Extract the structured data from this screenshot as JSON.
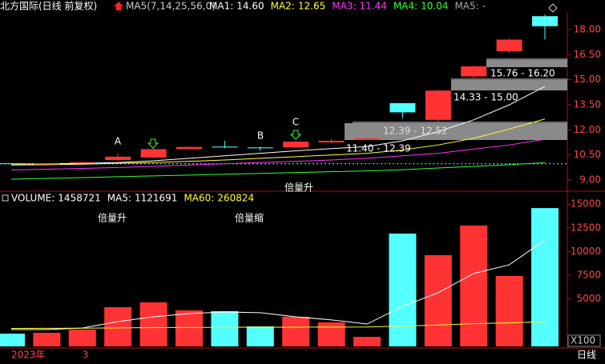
{
  "header": {
    "title": "北方国际(日线 前复权)",
    "indicator": "MA5(7,14,25,56,0)",
    "period": "日线"
  },
  "chart_data": [
    {
      "type": "candlestick",
      "categories": [
        "2023年",
        null,
        "3",
        null,
        null,
        null,
        null,
        null,
        null,
        null,
        null,
        null,
        null,
        null,
        null,
        null
      ],
      "open": [
        10.0,
        9.97,
        10.02,
        10.2,
        10.35,
        10.85,
        11.0,
        10.95,
        10.95,
        11.25,
        11.4,
        13.6,
        12.6,
        15.2,
        16.7,
        18.8
      ],
      "close": [
        9.98,
        9.99,
        10.07,
        10.4,
        10.85,
        10.98,
        10.95,
        10.9,
        11.3,
        11.35,
        11.5,
        13.05,
        14.35,
        15.8,
        17.4,
        18.2
      ],
      "high": [
        10.02,
        10.0,
        10.1,
        10.6,
        10.9,
        11.0,
        11.35,
        11.0,
        11.35,
        11.45,
        11.55,
        13.6,
        14.4,
        15.85,
        17.45,
        18.9
      ],
      "low": [
        9.96,
        9.95,
        10.0,
        10.15,
        10.3,
        10.8,
        10.9,
        10.75,
        10.9,
        11.2,
        11.4,
        12.7,
        12.5,
        15.0,
        16.6,
        17.4
      ],
      "up_color": "#ff3333",
      "down_color": "#54ffff",
      "series": [
        {
          "name": "MA1:",
          "color": "#ffffff",
          "last_label": "14.60",
          "values": [
            9.95,
            9.97,
            10.0,
            10.05,
            10.15,
            10.3,
            10.45,
            10.6,
            10.75,
            10.88,
            11.0,
            11.35,
            11.9,
            12.6,
            13.5,
            14.6
          ]
        },
        {
          "name": "MA2:",
          "color": "#ffff33",
          "last_label": "12.65",
          "values": [
            9.9,
            9.92,
            9.95,
            10.0,
            10.05,
            10.12,
            10.2,
            10.3,
            10.4,
            10.5,
            10.6,
            10.8,
            11.1,
            11.5,
            12.05,
            12.65
          ]
        },
        {
          "name": "MA3:",
          "color": "#ff33ff",
          "last_label": "11.44",
          "values": [
            9.6,
            9.65,
            9.7,
            9.75,
            9.82,
            9.9,
            9.97,
            10.05,
            10.12,
            10.2,
            10.3,
            10.45,
            10.6,
            10.85,
            11.1,
            11.44
          ]
        },
        {
          "name": "MA4:",
          "color": "#33ff33",
          "last_label": "10.04",
          "values": [
            9.05,
            9.1,
            9.15,
            9.2,
            9.25,
            9.3,
            9.35,
            9.4,
            9.45,
            9.5,
            9.55,
            9.62,
            9.72,
            9.82,
            9.92,
            10.04
          ]
        },
        {
          "name": "MA5:",
          "color": "#aaaaaa",
          "last_label": "-"
        }
      ],
      "ref_line": 9.97,
      "ylim": [
        8.43,
        19.05
      ],
      "yticks": [
        {
          "value": 9,
          "label": "9.00"
        },
        {
          "value": 10.5,
          "label": "10.50"
        },
        {
          "value": 12,
          "label": "12.00"
        },
        {
          "value": 13.5,
          "label": "13.50"
        },
        {
          "value": 15,
          "label": "15.00"
        },
        {
          "value": 16.5,
          "label": "16.50"
        },
        {
          "value": 18,
          "label": "18.00"
        }
      ],
      "annotations": [
        "A",
        "B",
        "C",
        "倍量升"
      ],
      "zones": [
        "12.39 - 12.52",
        "11.40 - 12.39",
        "14.33 - 15.00",
        "15.76 - 16.20"
      ]
    },
    {
      "type": "bar",
      "legend": [
        {
          "name": "VOLUME:",
          "value": 1458721,
          "color": "#ffffff"
        },
        {
          "name": "MA5:",
          "value": 1121691,
          "color": "#ffffff"
        },
        {
          "name": "MA60:",
          "value": 260824,
          "color": "#ffff33"
        }
      ],
      "values": [
        1350,
        1440,
        1770,
        4140,
        4650,
        3800,
        3720,
        2110,
        3130,
        2530,
        1010,
        11900,
        9630,
        12750,
        7430,
        14587
      ],
      "series": [
        {
          "name": "MA5",
          "color": "#ffffff",
          "values": [
            1770,
            1770,
            1940,
            2620,
            3120,
            3460,
            3630,
            3550,
            3120,
            2790,
            2360,
            4220,
            5660,
            7690,
            8610,
            11217
          ]
        },
        {
          "name": "MA60",
          "color": "#ffff33",
          "values": [
            1900,
            1910,
            1920,
            1950,
            1980,
            2000,
            2010,
            2020,
            2030,
            2040,
            2050,
            2150,
            2250,
            2400,
            2480,
            2608
          ]
        }
      ],
      "unit": "X100",
      "ylim": [
        0,
        16200
      ],
      "yticks": [
        5000,
        7500,
        10000,
        12500,
        15000
      ],
      "annotations": [
        "倍量升",
        "倍量缩"
      ]
    }
  ]
}
